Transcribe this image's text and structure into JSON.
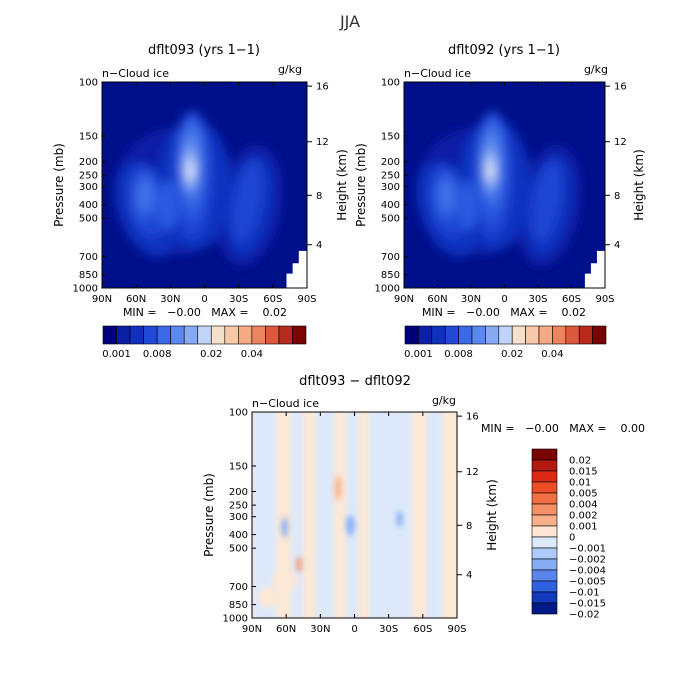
{
  "figure": {
    "title": "JJA",
    "colors": {
      "abs_levels": [
        "#000f8a",
        "#0a1fa6",
        "#1030be",
        "#1a44d2",
        "#2a5ae0",
        "#4070e8",
        "#5a88ee",
        "#7aa2f2",
        "#9dbcf6",
        "#c2d6fa",
        "#e2ecfd",
        "#fdf3e6"
      ],
      "abs_colorbar": [
        "#00007a",
        "#0a1fa6",
        "#1030be",
        "#1f49d6",
        "#3a68e6",
        "#5a88ee",
        "#88aaf2",
        "#c0d4fa",
        "#f5e0cc",
        "#f8c8a8",
        "#f4aa84",
        "#ec8460",
        "#dc5a3c",
        "#b82a1c",
        "#7a0404"
      ],
      "diff_colorbar": [
        "#7a0404",
        "#b2180e",
        "#dc2a14",
        "#ee4c24",
        "#f26e44",
        "#f59066",
        "#f8b08a",
        "#fde6d2",
        "#dcebfc",
        "#aecafa",
        "#86acf4",
        "#5a86ea",
        "#2e60e0",
        "#1238c0",
        "#001a8a"
      ],
      "diff_bg_pos": "#fde8d4",
      "diff_bg_neg": "#dde9fb"
    }
  },
  "chart_data": [
    {
      "type": "heatmap",
      "title": "dflt093 (yrs 1−1)",
      "corner_left": "n−Cloud ice",
      "corner_right": "g/kg",
      "ylabel": "Pressure (mb)",
      "ylabel_right": "Height (km)",
      "x_ticks": [
        "90N",
        "60N",
        "30N",
        "0",
        "30S",
        "60S",
        "90S"
      ],
      "y_ticks": [
        "100",
        "150",
        "200",
        "250",
        "300",
        "400",
        "500",
        "700",
        "850",
        "1000"
      ],
      "y_right_ticks": [
        "16",
        "12",
        "8",
        "4"
      ],
      "stats": "MIN =   −0.00   MAX =    0.02",
      "colorbar_labels": [
        "0.001",
        "0.008",
        "0.02",
        "0.04"
      ]
    },
    {
      "type": "heatmap",
      "title": "dflt092 (yrs 1−1)",
      "corner_left": "n−Cloud ice",
      "corner_right": "g/kg",
      "ylabel": "Pressure (mb)",
      "ylabel_right": "Height (km)",
      "x_ticks": [
        "90N",
        "60N",
        "30N",
        "0",
        "30S",
        "60S",
        "90S"
      ],
      "y_ticks": [
        "100",
        "150",
        "200",
        "250",
        "300",
        "400",
        "500",
        "700",
        "850",
        "1000"
      ],
      "y_right_ticks": [
        "16",
        "12",
        "8",
        "4"
      ],
      "stats": "MIN =   −0.00   MAX =    0.02",
      "colorbar_labels": [
        "0.001",
        "0.008",
        "0.02",
        "0.04"
      ]
    },
    {
      "type": "heatmap",
      "title": "dflt093 − dflt092",
      "corner_left": "n−Cloud ice",
      "corner_right": "g/kg",
      "ylabel": "Pressure (mb)",
      "ylabel_right": "Height (km)",
      "x_ticks": [
        "90N",
        "60N",
        "30N",
        "0",
        "30S",
        "60S",
        "90S"
      ],
      "y_ticks": [
        "100",
        "150",
        "200",
        "250",
        "300",
        "400",
        "500",
        "700",
        "850",
        "1000"
      ],
      "y_right_ticks": [
        "16",
        "12",
        "8",
        "4"
      ],
      "stats": "MIN =   −0.00   MAX =    0.00",
      "colorbar_labels": [
        "0.02",
        "0.015",
        "0.01",
        "0.005",
        "0.004",
        "0.002",
        "0.001",
        "0",
        "−0.001",
        "−0.002",
        "−0.004",
        "−0.005",
        "−0.01",
        "−0.015",
        "−0.02"
      ]
    }
  ]
}
